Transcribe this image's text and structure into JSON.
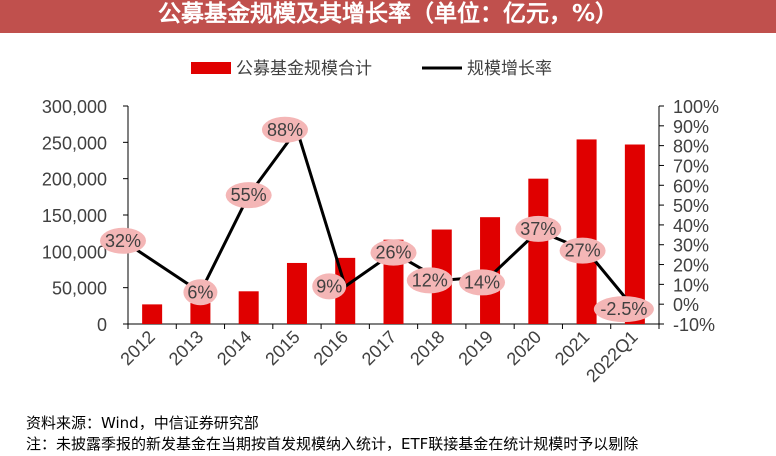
{
  "header": {
    "title": "公募基金规模及其增长率（单位：亿元，%）"
  },
  "footer": {
    "source": "资料来源：Wind，中信证券研究部",
    "note": "注：未披露季报的新发基金在当期按首发规模纳入统计，ETF联接基金在统计规模时予以剔除"
  },
  "colors": {
    "bar": "#e00000",
    "line": "#000000",
    "label_bubble": "#f4b6b6",
    "title_bg": "#c0504d"
  },
  "chart_data": {
    "type": "bar",
    "categories": [
      "2012",
      "2013",
      "2014",
      "2015",
      "2016",
      "2017",
      "2018",
      "2019",
      "2020",
      "2021",
      "2022Q1"
    ],
    "series": [
      {
        "name": "公募基金规模合计",
        "type": "bar",
        "axis": "left",
        "values": [
          27000,
          29000,
          45000,
          84000,
          91000,
          116000,
          130000,
          147000,
          200000,
          254000,
          247000
        ]
      },
      {
        "name": "规模增长率",
        "type": "line",
        "axis": "right",
        "values": [
          32,
          6,
          55,
          88,
          9,
          26,
          12,
          14,
          37,
          27,
          -2.5
        ],
        "labels": [
          "32%",
          "6%",
          "55%",
          "88%",
          "9%",
          "26%",
          "12%",
          "14%",
          "37%",
          "27%",
          "-2.5%"
        ]
      }
    ],
    "y_left": {
      "min": 0,
      "max": 300000,
      "ticks": [
        "0",
        "50,000",
        "100,000",
        "150,000",
        "200,000",
        "250,000",
        "300,000"
      ]
    },
    "y_right": {
      "min": -10,
      "max": 100,
      "ticks": [
        "-10%",
        "0%",
        "10%",
        "20%",
        "30%",
        "40%",
        "50%",
        "60%",
        "70%",
        "80%",
        "90%",
        "100%"
      ]
    },
    "legend": [
      "公募基金规模合计",
      "规模增长率"
    ],
    "legend_position": "top"
  }
}
